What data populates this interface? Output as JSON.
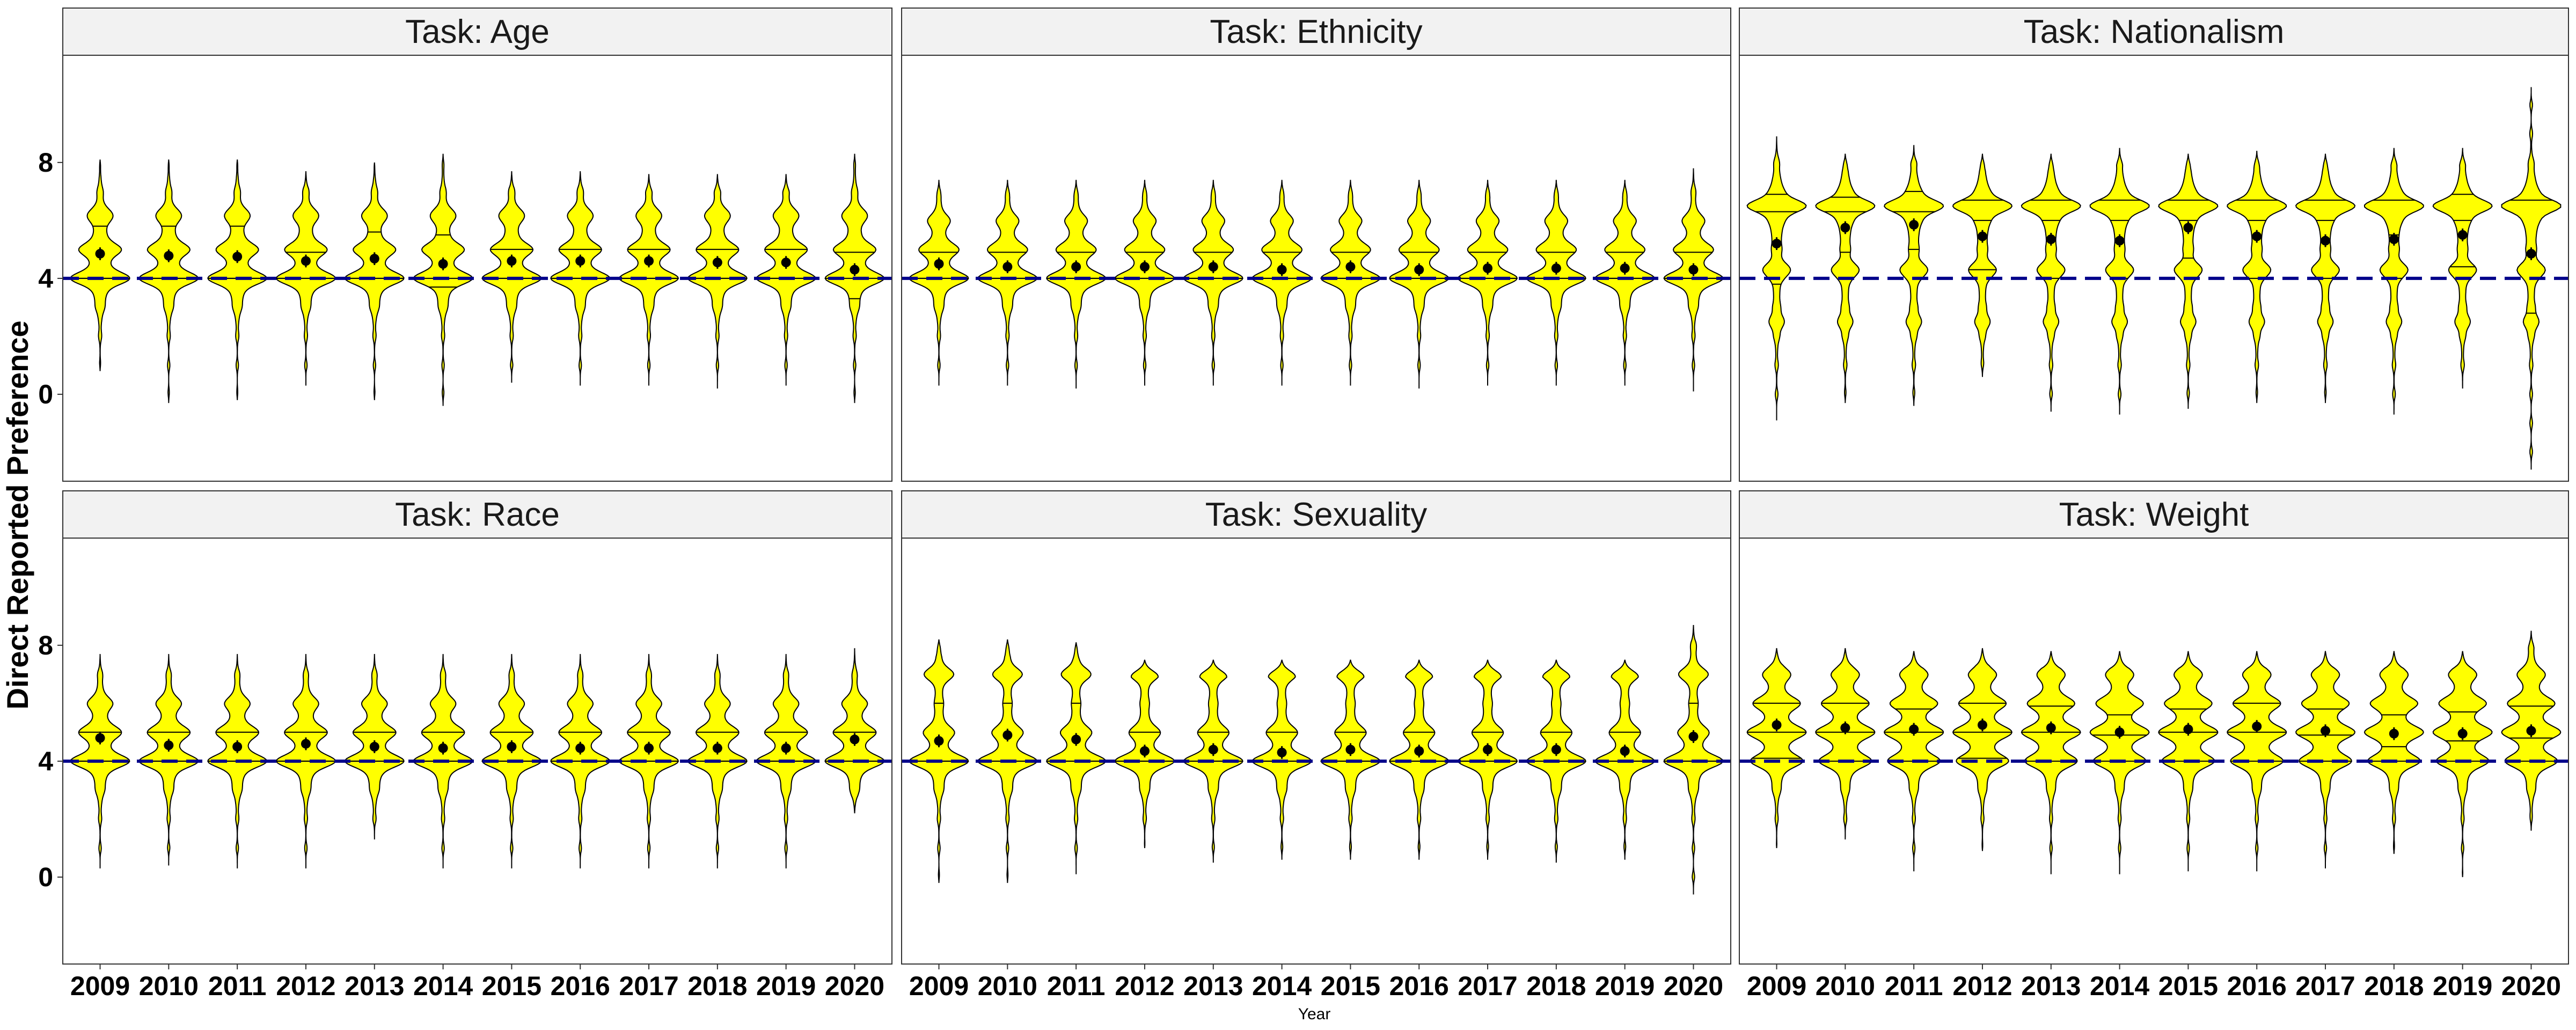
{
  "chart_data": {
    "type": "violin",
    "ylabel": "Direct Reported Preference",
    "xlabel": "Year",
    "yticks": [
      0,
      4,
      8
    ],
    "ylim": [
      -3.0,
      11.7
    ],
    "reference_line": {
      "y": 4,
      "style": "dashed",
      "color": "#00008B"
    },
    "violin_fill": "#FFFF00",
    "years": [
      "2009",
      "2010",
      "2011",
      "2012",
      "2013",
      "2014",
      "2015",
      "2016",
      "2017",
      "2018",
      "2019",
      "2020"
    ],
    "panels": [
      {
        "title": "Task: Age",
        "means": [
          4.85,
          4.78,
          4.75,
          4.6,
          4.68,
          4.5,
          4.6,
          4.6,
          4.6,
          4.55,
          4.55,
          4.3
        ],
        "min": [
          0.8,
          -0.3,
          -0.2,
          0.3,
          -0.2,
          -0.4,
          0.4,
          0.3,
          0.3,
          0.2,
          0.3,
          -0.3
        ],
        "max": [
          8.1,
          8.1,
          8.1,
          7.7,
          8.0,
          8.3,
          7.7,
          7.7,
          7.6,
          7.6,
          7.6,
          8.3
        ],
        "q1": [
          4.0,
          4.0,
          4.0,
          4.0,
          4.0,
          3.7,
          4.0,
          4.0,
          4.0,
          4.0,
          4.0,
          3.3
        ],
        "median": [
          4.0,
          4.0,
          4.0,
          4.0,
          4.0,
          4.0,
          4.0,
          4.0,
          4.0,
          4.0,
          4.0,
          4.0
        ],
        "q3": [
          5.8,
          5.8,
          5.8,
          4.9,
          5.6,
          5.5,
          5.0,
          5.0,
          5.0,
          5.0,
          5.0,
          4.9
        ],
        "modes": [
          [
            4.0,
            1.0
          ],
          [
            5.0,
            0.6
          ],
          [
            6.2,
            0.4
          ]
        ]
      },
      {
        "title": "Task: Ethnicity",
        "means": [
          4.5,
          4.4,
          4.4,
          4.4,
          4.4,
          4.3,
          4.4,
          4.3,
          4.35,
          4.35,
          4.35,
          4.3
        ],
        "min": [
          0.3,
          0.3,
          0.2,
          0.3,
          0.3,
          0.3,
          0.3,
          0.2,
          0.3,
          0.3,
          0.3,
          0.1
        ],
        "max": [
          7.4,
          7.4,
          7.4,
          7.4,
          7.4,
          7.4,
          7.4,
          7.4,
          7.4,
          7.4,
          7.4,
          7.8
        ],
        "q1": [
          4.0,
          4.0,
          4.0,
          4.0,
          4.0,
          4.0,
          4.0,
          4.0,
          4.0,
          4.0,
          4.0,
          4.0
        ],
        "median": [
          4.0,
          4.0,
          4.0,
          4.0,
          4.0,
          4.0,
          4.0,
          4.0,
          4.0,
          4.0,
          4.0,
          4.0
        ],
        "q3": [
          4.9,
          4.9,
          4.9,
          4.9,
          4.9,
          4.9,
          4.9,
          4.9,
          4.9,
          4.9,
          4.9,
          4.9
        ],
        "modes": [
          [
            4.0,
            1.0
          ],
          [
            5.0,
            0.55
          ],
          [
            6.0,
            0.3
          ]
        ]
      },
      {
        "title": "Task: Nationalism",
        "means": [
          5.2,
          5.75,
          5.85,
          5.45,
          5.35,
          5.3,
          5.75,
          5.45,
          5.3,
          5.35,
          5.5,
          4.85
        ],
        "min": [
          -0.9,
          -0.3,
          -0.4,
          0.6,
          -0.6,
          -0.7,
          -0.5,
          -0.3,
          -0.3,
          -0.7,
          0.2,
          -2.6
        ],
        "max": [
          8.9,
          8.3,
          8.6,
          8.3,
          8.3,
          8.5,
          8.3,
          8.4,
          8.3,
          8.5,
          8.5,
          10.6
        ],
        "q1": [
          3.8,
          4.9,
          5.0,
          4.3,
          4.0,
          4.0,
          4.7,
          4.0,
          4.0,
          4.0,
          4.4,
          2.8
        ],
        "median": [
          6.3,
          6.3,
          6.3,
          6.0,
          6.0,
          6.0,
          6.0,
          6.0,
          6.0,
          5.5,
          6.0,
          4.8
        ],
        "q3": [
          6.9,
          6.8,
          7.0,
          6.7,
          6.7,
          6.7,
          6.7,
          6.7,
          6.7,
          6.7,
          6.9,
          6.7
        ],
        "modes": [
          [
            6.5,
            1.0
          ],
          [
            4.3,
            0.45
          ],
          [
            2.5,
            0.25
          ]
        ]
      },
      {
        "title": "Task: Race",
        "means": [
          4.8,
          4.55,
          4.5,
          4.6,
          4.5,
          4.45,
          4.5,
          4.45,
          4.45,
          4.45,
          4.45,
          4.75
        ],
        "min": [
          0.3,
          0.4,
          0.3,
          0.3,
          1.3,
          0.3,
          0.3,
          0.3,
          0.3,
          0.3,
          0.3,
          2.2
        ],
        "max": [
          7.7,
          7.7,
          7.7,
          7.7,
          7.7,
          7.7,
          7.7,
          7.7,
          7.7,
          7.7,
          7.7,
          7.9
        ],
        "q1": [
          4.0,
          4.0,
          4.0,
          4.0,
          4.0,
          4.0,
          4.0,
          4.0,
          4.0,
          4.0,
          4.0,
          4.0
        ],
        "median": [
          4.0,
          4.0,
          4.0,
          4.0,
          4.0,
          4.0,
          4.0,
          4.0,
          4.0,
          4.0,
          4.0,
          4.0
        ],
        "q3": [
          5.0,
          5.0,
          5.0,
          5.0,
          5.0,
          5.0,
          5.0,
          5.0,
          5.0,
          5.0,
          5.0,
          5.0
        ],
        "modes": [
          [
            4.0,
            1.0
          ],
          [
            5.0,
            0.6
          ],
          [
            6.0,
            0.35
          ]
        ]
      },
      {
        "title": "Task: Sexuality",
        "means": [
          4.7,
          4.9,
          4.75,
          4.35,
          4.4,
          4.3,
          4.4,
          4.35,
          4.4,
          4.4,
          4.35,
          4.85
        ],
        "min": [
          -0.2,
          -0.2,
          0.1,
          1.0,
          0.5,
          0.6,
          0.6,
          0.6,
          0.6,
          0.5,
          0.6,
          -0.6
        ],
        "max": [
          8.2,
          8.2,
          8.1,
          7.5,
          7.5,
          7.5,
          7.5,
          7.5,
          7.5,
          7.5,
          7.5,
          8.7
        ],
        "q1": [
          4.0,
          4.0,
          4.0,
          4.0,
          4.0,
          4.0,
          4.0,
          4.0,
          4.0,
          4.0,
          4.0,
          4.0
        ],
        "median": [
          4.0,
          4.0,
          4.0,
          4.0,
          4.0,
          4.0,
          4.0,
          4.0,
          4.0,
          4.0,
          4.0,
          4.0
        ],
        "q3": [
          6.0,
          6.0,
          6.0,
          5.0,
          5.0,
          5.0,
          5.0,
          5.0,
          5.0,
          5.0,
          5.0,
          6.0
        ],
        "modes": [
          [
            4.0,
            1.0
          ],
          [
            7.0,
            0.5
          ],
          [
            5.0,
            0.4
          ]
        ]
      },
      {
        "title": "Task: Weight",
        "means": [
          5.25,
          5.15,
          5.1,
          5.25,
          5.15,
          5.0,
          5.1,
          5.2,
          5.05,
          4.95,
          4.95,
          5.05
        ],
        "min": [
          1.0,
          1.3,
          0.2,
          0.9,
          0.1,
          0.1,
          0.2,
          0.2,
          0.3,
          0.8,
          0.0,
          1.6
        ],
        "max": [
          7.9,
          7.9,
          7.8,
          7.9,
          7.8,
          7.8,
          7.8,
          7.8,
          7.8,
          7.8,
          7.8,
          8.5
        ],
        "q1": [
          4.1,
          4.0,
          4.0,
          4.1,
          4.0,
          4.0,
          4.0,
          4.0,
          4.0,
          4.0,
          4.0,
          4.0
        ],
        "median": [
          5.0,
          5.0,
          5.0,
          5.0,
          5.0,
          4.9,
          5.0,
          5.0,
          4.9,
          4.5,
          4.7,
          4.8
        ],
        "q3": [
          6.0,
          6.0,
          5.8,
          6.0,
          5.9,
          5.6,
          5.8,
          6.0,
          5.8,
          5.6,
          5.7,
          5.9
        ],
        "modes": [
          [
            4.0,
            0.85
          ],
          [
            5.0,
            0.9
          ],
          [
            6.0,
            0.7
          ],
          [
            7.0,
            0.4
          ]
        ]
      }
    ]
  }
}
